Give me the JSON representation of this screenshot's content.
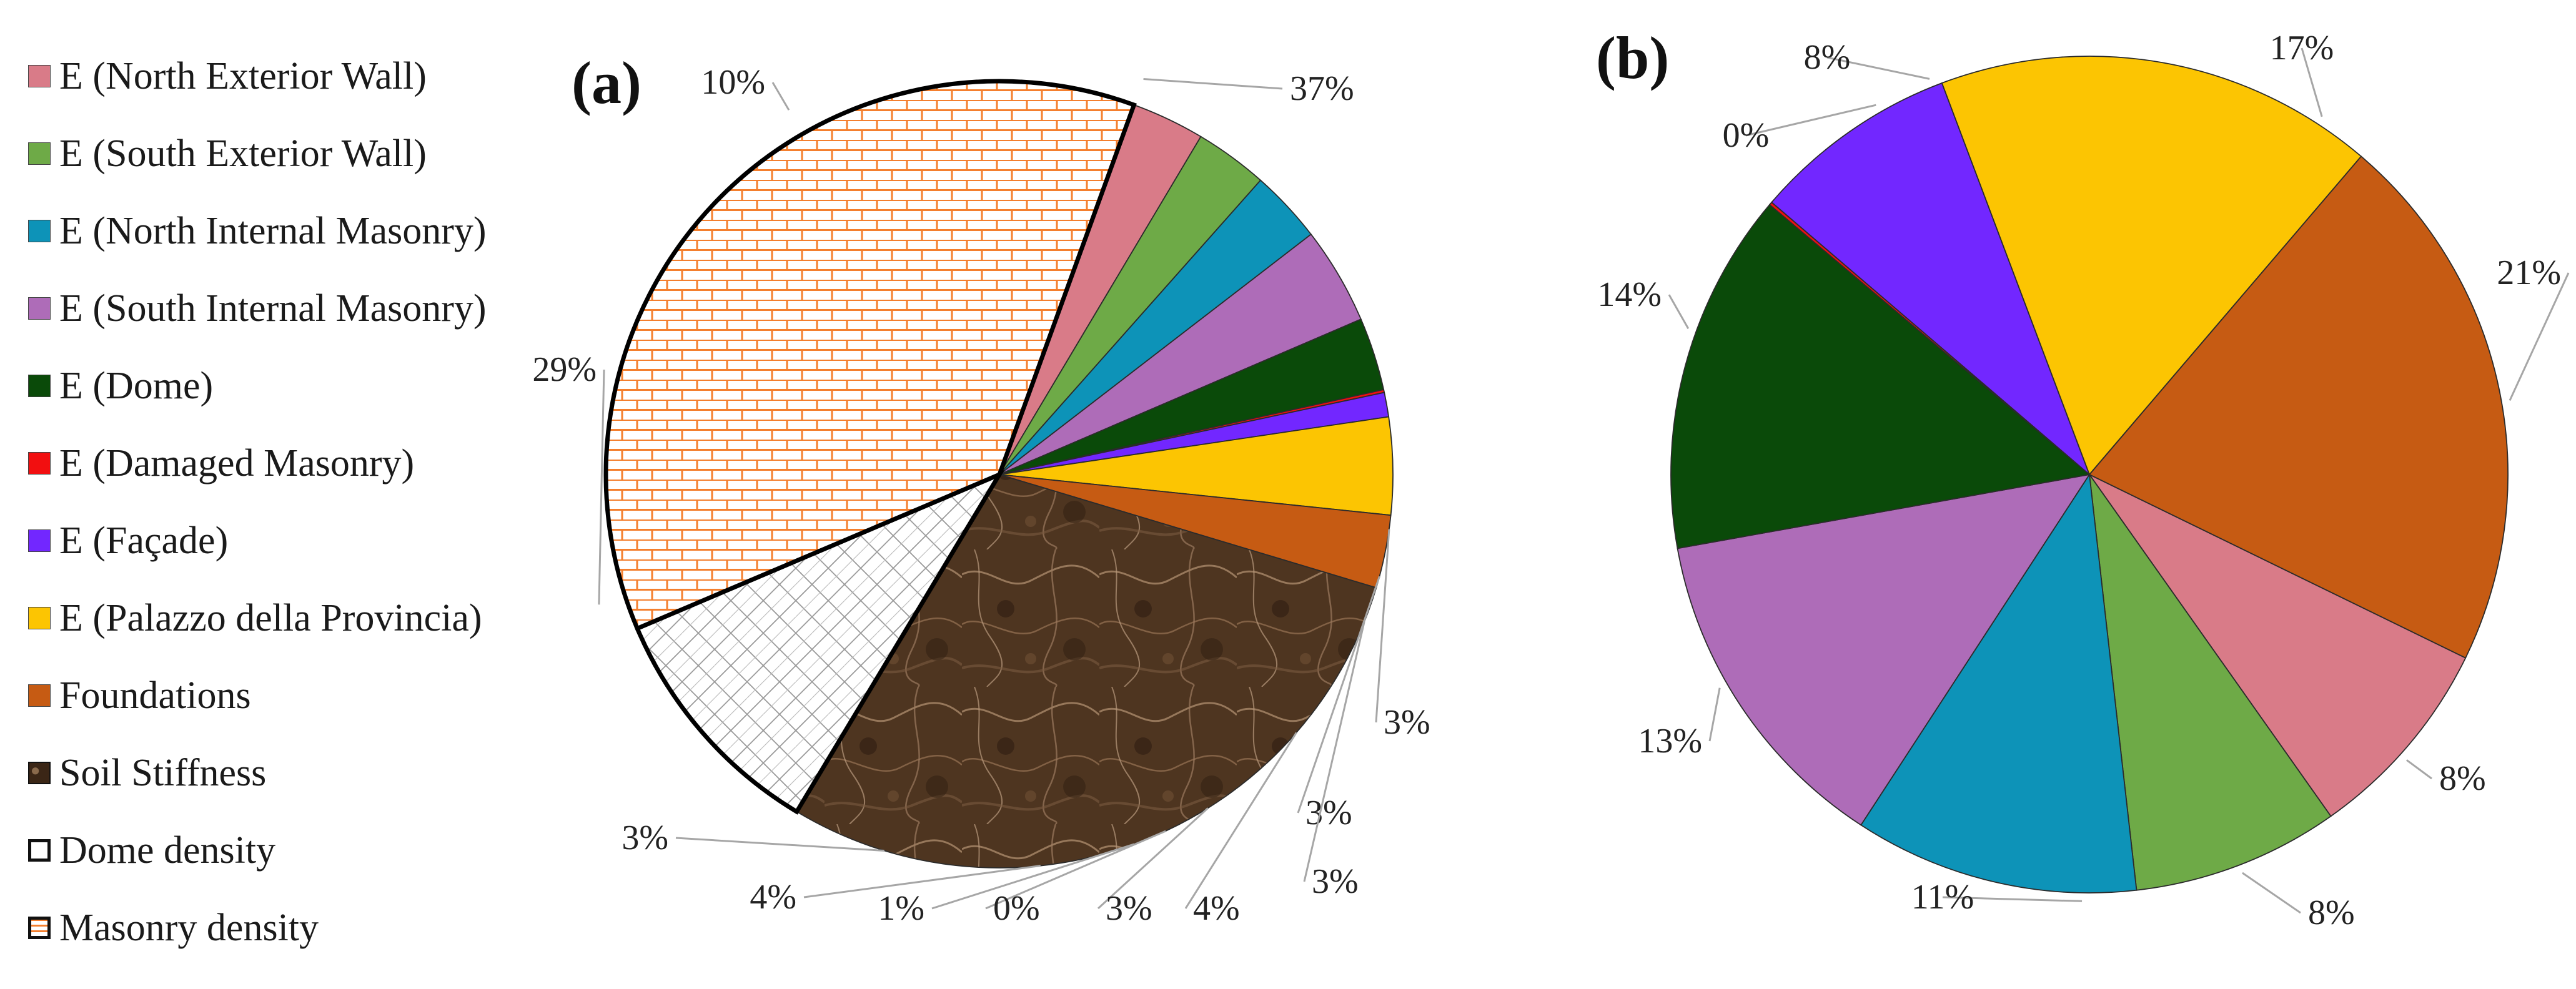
{
  "legend": [
    {
      "label": "E (North Exterior Wall)",
      "color": "#d97b88",
      "swatch": "solid"
    },
    {
      "label": "E (South Exterior Wall)",
      "color": "#6eaa47",
      "swatch": "solid"
    },
    {
      "label": "E (North Internal Masonry)",
      "color": "#0d93b8",
      "swatch": "solid"
    },
    {
      "label": "E (South Internal Masonry)",
      "color": "#ae6cb8",
      "swatch": "solid"
    },
    {
      "label": "E (Dome)",
      "color": "#0a4a09",
      "swatch": "solid"
    },
    {
      "label": "E (Damaged Masonry)",
      "color": "#f20f10",
      "swatch": "solid"
    },
    {
      "label": "E (Façade)",
      "color": "#7227ff",
      "swatch": "solid"
    },
    {
      "label": "E (Palazzo della Provincia)",
      "color": "#fcc502",
      "swatch": "solid"
    },
    {
      "label": "Foundations",
      "color": "#c65b13",
      "swatch": "solid"
    },
    {
      "label": "Soil Stiffness",
      "color": "#4e3520",
      "swatch": "marble"
    },
    {
      "label": "Dome density",
      "color": "#ffffff",
      "swatch": "crosshatch"
    },
    {
      "label": "Masonry density",
      "color": "#f47f2e",
      "swatch": "brick"
    }
  ],
  "chart_data": [
    {
      "type": "pie",
      "panel_label": "(a)",
      "categories": [
        "E (North Exterior Wall)",
        "E (South Exterior Wall)",
        "E (North Internal Masonry)",
        "E (South Internal Masonry)",
        "E (Dome)",
        "E (Damaged Masonry)",
        "E (Façade)",
        "E (Palazzo della Provincia)",
        "Foundations",
        "Soil Stiffness",
        "Dome density",
        "Masonry density"
      ],
      "values": [
        3,
        3,
        3,
        4,
        3,
        0,
        1,
        4,
        3,
        29,
        10,
        37
      ],
      "labels": [
        "3%",
        "3%",
        "3%",
        "4%",
        "3%",
        "0%",
        "1%",
        "4%",
        "3%",
        "29%",
        "10%",
        "37%"
      ]
    },
    {
      "type": "pie",
      "panel_label": "(b)",
      "categories": [
        "E (North Exterior Wall)",
        "E (South Exterior Wall)",
        "E (North Internal Masonry)",
        "E (South Internal Masonry)",
        "E (Dome)",
        "E (Damaged Masonry)",
        "E (Façade)",
        "E (Palazzo della Provincia)",
        "Foundations"
      ],
      "values": [
        8,
        8,
        11,
        13,
        14,
        0,
        8,
        17,
        21
      ],
      "labels": [
        "8%",
        "8%",
        "11%",
        "13%",
        "14%",
        "0%",
        "8%",
        "17%",
        "21%"
      ]
    }
  ]
}
